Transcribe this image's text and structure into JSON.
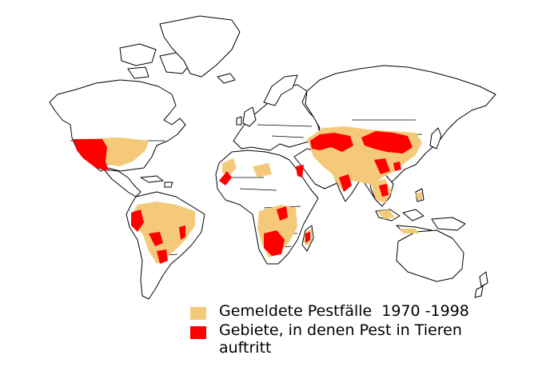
{
  "colors": {
    "reported_cases": "#f5c97a",
    "animal_plague": "#ff0000",
    "land": "#ffffff",
    "outline": "#000000"
  },
  "legend": {
    "items": [
      {
        "key": "reported_cases",
        "label": "Gemeldete Pestfälle  1970 -1998",
        "color": "#f5c97a"
      },
      {
        "key": "animal_plague",
        "label": "Gebiete, in denen Pest in Tieren\nauftritt",
        "color": "#ff0000"
      }
    ]
  },
  "regions": {
    "reported_cases": [
      "usa",
      "mexico-north",
      "brazil",
      "peru",
      "bolivia",
      "argentina-north",
      "morocco",
      "libya",
      "east-africa",
      "southern-africa",
      "madagascar",
      "middle-east",
      "central-asia",
      "china",
      "india",
      "indochina",
      "indonesia"
    ],
    "animal_plague": [
      "usa-west",
      "peru-andes",
      "brazil-northeast",
      "bolivia",
      "argentina-northwest",
      "morocco-coast",
      "east-africa-highlands",
      "southern-africa",
      "madagascar",
      "caucasus",
      "central-asia",
      "mongolia",
      "china",
      "india",
      "vietnam"
    ]
  }
}
